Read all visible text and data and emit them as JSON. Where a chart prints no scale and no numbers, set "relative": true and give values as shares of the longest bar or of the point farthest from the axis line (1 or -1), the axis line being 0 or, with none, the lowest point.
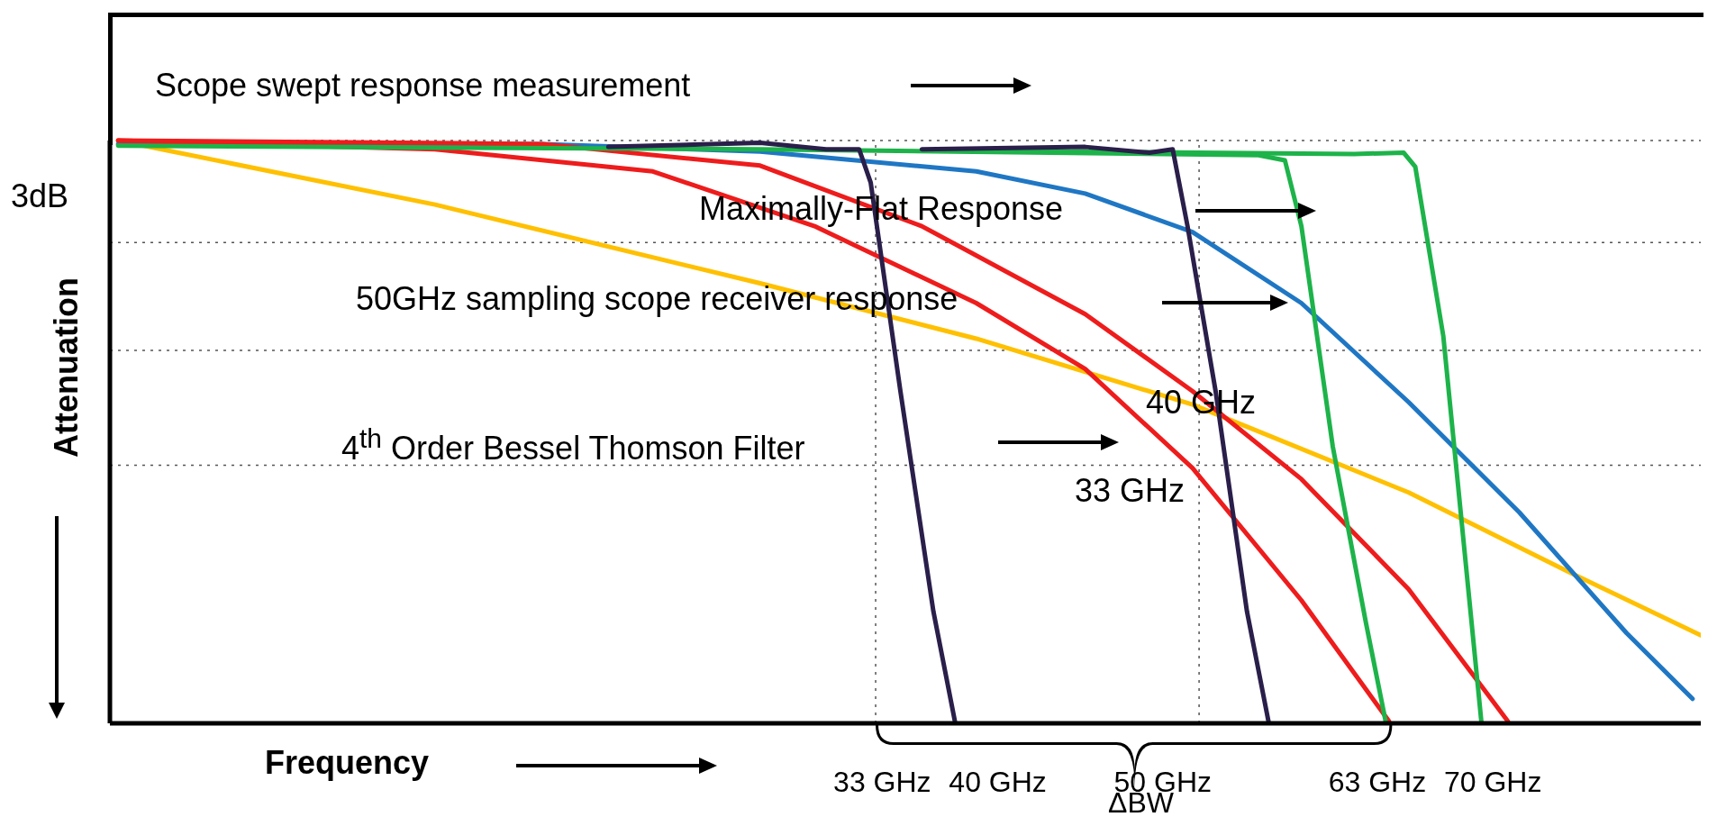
{
  "chart_data": {
    "type": "line",
    "relative": true,
    "xlabel": "Frequency",
    "ylabel": "Attenuation",
    "xlim": [
      -13.8,
      82.6
    ],
    "xticks": [
      {
        "value": 33,
        "label": "33 GHz"
      },
      {
        "value": 40,
        "label": "40 GHz"
      },
      {
        "value": 50,
        "label": "50 GHz"
      },
      {
        "value": 63,
        "label": "63 GHz"
      },
      {
        "value": 70,
        "label": "70 GHz"
      }
    ],
    "line_style": "solid",
    "marker": "none",
    "annotations": [
      "Scope swept response measurement",
      "Maximally-Flat Response",
      "50GHz sampling scope receiver response",
      "4$^{th}$ Order Bessel Thomson Filter",
      "40 GHz",
      "33 GHz",
      "3dB",
      "ΔBW"
    ],
    "ref_lines": [
      {
        "axis": "x",
        "value": 32.6,
        "color": "#555555",
        "line_style": "dotted"
      },
      {
        "axis": "x",
        "value": 52.2,
        "color": "#555555",
        "line_style": "dotted"
      },
      {
        "axis": "y",
        "value": 1.0,
        "color": "#555555",
        "line_style": "dotted"
      },
      {
        "axis": "y",
        "value": 0.825,
        "color": "#555555",
        "line_style": "dotted"
      },
      {
        "axis": "y",
        "value": 0.64,
        "color": "#555555",
        "line_style": "dotted"
      },
      {
        "axis": "y",
        "value": 0.443,
        "color": "#555555",
        "line_style": "dotted"
      }
    ],
    "series": [
      {
        "color": "#ffc000",
        "x": [
          -13.3,
          5.9,
          25.6,
          38.7,
          51.8,
          64.9,
          74.8,
          82.6
        ],
        "values": [
          1.0,
          0.89,
          0.755,
          0.66,
          0.547,
          0.396,
          0.257,
          0.151
        ]
      },
      {
        "color": "#1f77c4",
        "x": [
          -13.3,
          12.4,
          25.6,
          38.7,
          45.3,
          51.8,
          58.4,
          64.9,
          71.6,
          78.1,
          82.1
        ],
        "values": [
          0.994,
          0.994,
          0.981,
          0.947,
          0.909,
          0.843,
          0.721,
          0.551,
          0.362,
          0.155,
          0.042
        ]
      },
      {
        "color": "#ee1c1c",
        "x": [
          -13.3,
          5.9,
          19.1,
          28.9,
          38.7,
          45.3,
          51.8,
          58.4,
          63.7
        ],
        "values": [
          1.0,
          0.985,
          0.947,
          0.853,
          0.721,
          0.608,
          0.438,
          0.211,
          0.004
        ]
      },
      {
        "color": "#ee1c1c",
        "x": [
          -13.3,
          12.4,
          25.6,
          35.4,
          45.3,
          51.8,
          58.4,
          64.9,
          70.9
        ],
        "values": [
          1.0,
          0.994,
          0.957,
          0.853,
          0.702,
          0.57,
          0.419,
          0.23,
          0.004
        ]
      },
      {
        "color": "#1db34a",
        "x": [
          -13.3,
          25.6,
          55.8,
          57.4,
          58.4,
          60.3,
          62.3,
          63.5
        ],
        "values": [
          0.991,
          0.985,
          0.975,
          0.966,
          0.853,
          0.475,
          0.174,
          0.004
        ]
      },
      {
        "color": "#1db34a",
        "x": [
          35.4,
          61.6,
          64.6,
          65.3,
          67.0,
          69.3
        ],
        "values": [
          0.983,
          0.977,
          0.979,
          0.955,
          0.664,
          0.004
        ]
      },
      {
        "color": "#2a1f4a",
        "x": [
          16.4,
          25.6,
          29.6,
          31.6,
          32.3,
          34.1,
          36.1,
          37.4
        ],
        "values": [
          0.989,
          0.996,
          0.985,
          0.985,
          0.928,
          0.57,
          0.192,
          0.004
        ]
      },
      {
        "color": "#2a1f4a",
        "x": [
          35.4,
          45.3,
          49.2,
          50.6,
          51.5,
          53.2,
          55.1,
          56.4
        ],
        "values": [
          0.985,
          0.989,
          0.979,
          0.985,
          0.853,
          0.57,
          0.192,
          0.004
        ]
      }
    ]
  }
}
